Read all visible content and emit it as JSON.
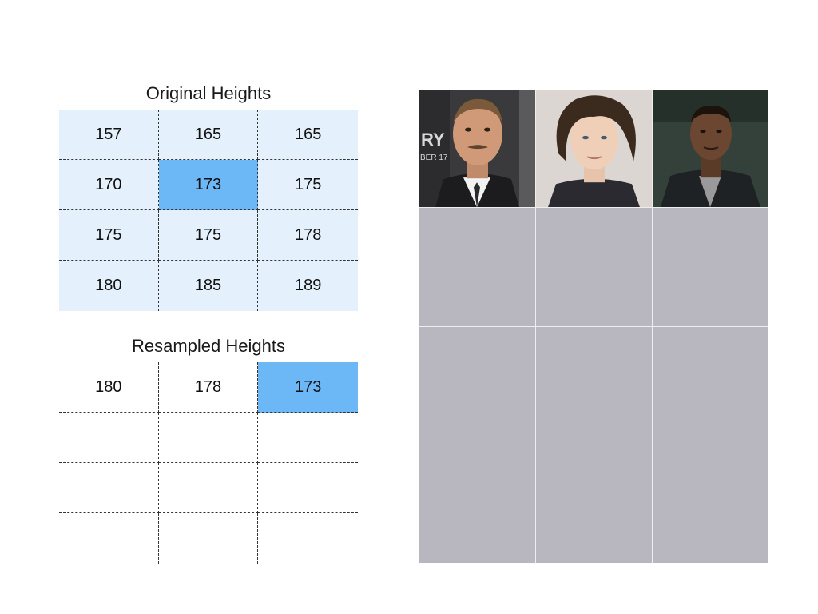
{
  "original": {
    "title": "Original Heights",
    "rows": [
      [
        "157",
        "165",
        "165"
      ],
      [
        "170",
        "173",
        "175"
      ],
      [
        "175",
        "175",
        "178"
      ],
      [
        "180",
        "185",
        "189"
      ]
    ],
    "highlighted": "173"
  },
  "resampled": {
    "title": "Resampled Heights",
    "rows": [
      [
        "180",
        "178",
        "173"
      ],
      [
        "",
        "",
        ""
      ],
      [
        "",
        "",
        ""
      ],
      [
        "",
        "",
        ""
      ]
    ],
    "highlighted": "173"
  },
  "photo_text": "RY BER 17",
  "colors": {
    "cell_bg": "#e4f0fb",
    "highlight": "#6cb8f6",
    "placeholder": "#b8b6bf"
  }
}
